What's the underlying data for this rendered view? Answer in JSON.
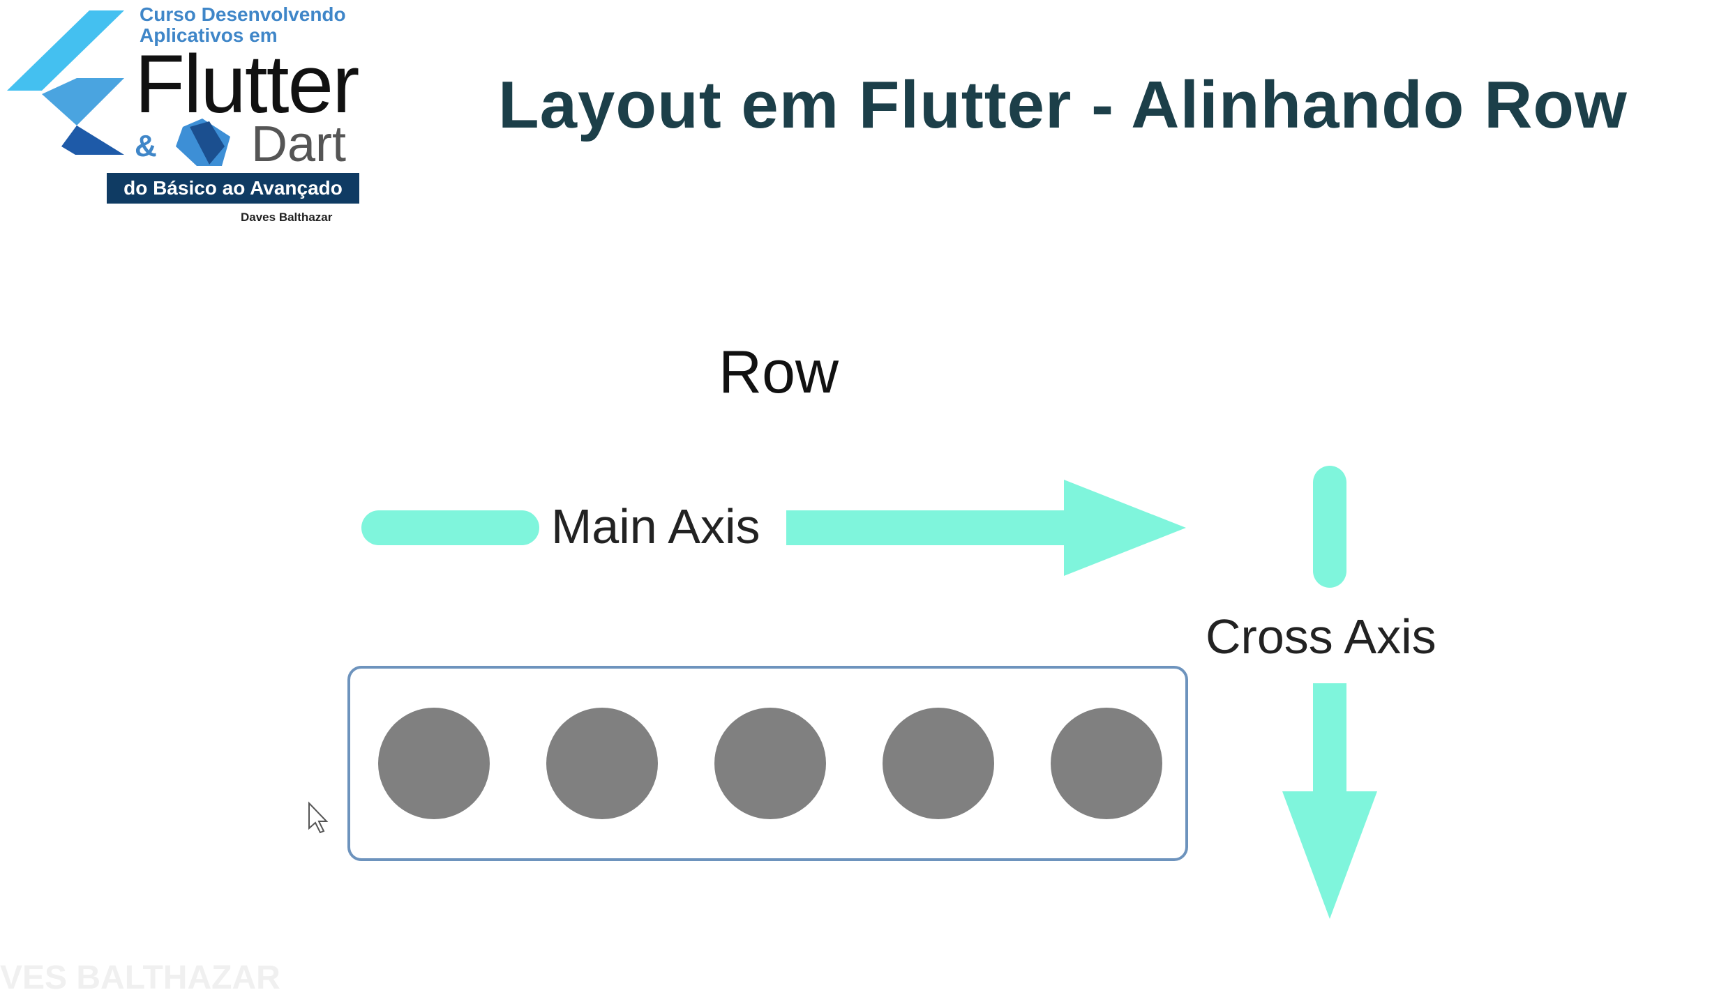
{
  "logo": {
    "line1": "Curso Desenvolvendo",
    "line2": "Aplicativos em",
    "flutter": "Flutter",
    "ampersand": "&",
    "dart": "Dart",
    "banner": "do Básico ao Avançado",
    "author": "Daves Balthazar"
  },
  "title": "Layout em Flutter - Alinhando Row",
  "diagram": {
    "row_label": "Row",
    "main_axis_label": "Main Axis",
    "cross_axis_label": "Cross Axis",
    "children": [
      "circle",
      "circle",
      "circle",
      "circle",
      "circle"
    ],
    "colors": {
      "arrow": "#7ff5dc",
      "circle": "#808080",
      "box_border": "#6d93bd",
      "title": "#1c3f49",
      "logo_blue": "#3f86c8",
      "logo_dark": "#0f3b63"
    }
  },
  "watermark": "VES BALTHAZAR"
}
